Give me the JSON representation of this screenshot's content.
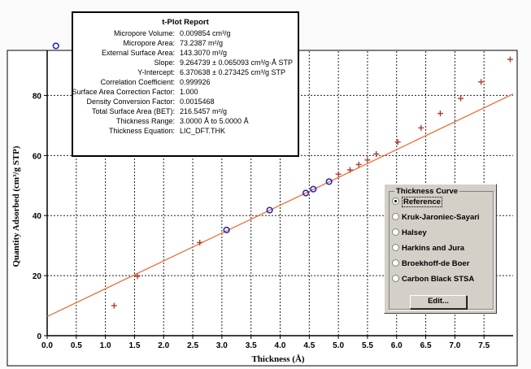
{
  "chart_data": {
    "type": "scatter",
    "title": "",
    "xlabel": "Thickness (Å)",
    "ylabel": "Quantity Adsorbed (cm³/g STP)",
    "xlim": [
      0,
      8.0
    ],
    "ylim": [
      0,
      95
    ],
    "x_ticks": [
      0.0,
      0.5,
      1.0,
      1.5,
      2.0,
      2.5,
      3.0,
      3.5,
      4.0,
      4.5,
      5.0,
      5.5,
      6.0,
      6.5,
      7.0,
      7.5
    ],
    "x_tick_labels": [
      "0.0",
      "0.5",
      "1.0",
      "1.5",
      "2.0",
      "2.5",
      "3.0",
      "3.5",
      "4.0",
      "4.5",
      "5.0",
      "5.5",
      "6.0",
      "6.5",
      "7.0",
      "7.5"
    ],
    "y_ticks": [
      0,
      20,
      40,
      60,
      80
    ],
    "y_tick_labels": [
      "0",
      "20",
      "40",
      "60",
      "80"
    ],
    "grid": true,
    "series": [
      {
        "marker": "circle",
        "color": "#2b2bb0",
        "x": [
          0.15,
          3.08,
          3.82,
          4.44,
          4.57,
          4.84
        ],
        "y": [
          96.5,
          35.2,
          41.8,
          47.5,
          48.8,
          51.3
        ]
      },
      {
        "marker": "plus",
        "color": "#b03a2e",
        "x": [
          1.15,
          1.55,
          2.62,
          5.0,
          5.2,
          5.35,
          5.5,
          5.65,
          6.02,
          6.42,
          6.75,
          7.1,
          7.45,
          7.95
        ],
        "y": [
          10.0,
          19.8,
          31.0,
          53.8,
          55.2,
          57.0,
          58.5,
          60.5,
          64.5,
          69.2,
          74.0,
          79.0,
          84.5,
          92.0
        ]
      },
      {
        "marker": "line",
        "color": "#e8703a",
        "x": [
          0.0,
          8.0
        ],
        "y": [
          6.37,
          80.49
        ]
      }
    ]
  },
  "report": {
    "title": "t-Plot Report",
    "rows": [
      {
        "label": "Micropore Volume:",
        "value": "0.009854 cm³/g"
      },
      {
        "label": "Micropore Area:",
        "value": "73.2387 m²/g"
      },
      {
        "label": "External Surface Area:",
        "value": "143.3070 m²/g"
      },
      {
        "label": "Slope:",
        "value": "9.264739 ± 0.065093 cm³/g·Å STP"
      },
      {
        "label": "Y-Intercept:",
        "value": "6.370638 ± 0.273425 cm³/g STP"
      },
      {
        "label": "Correlation Coefficient:",
        "value": "0.999926"
      },
      {
        "label": "Surface Area Correction Factor:",
        "value": "1.000"
      },
      {
        "label": "Density Conversion Factor:",
        "value": "0.0015468"
      },
      {
        "label": "Total Surface Area (BET):",
        "value": "216.5457 m²/g"
      },
      {
        "label": "Thickness Range:",
        "value": "3.0000 Å to 5.0000 Å"
      },
      {
        "label": "Thickness Equation:",
        "value": "LIC_DFT.THK"
      }
    ]
  },
  "thickness_curve": {
    "title": "Thickness Curve",
    "options": [
      {
        "label": "Reference",
        "checked": true
      },
      {
        "label": "Kruk-Jaroniec-Sayari",
        "checked": false
      },
      {
        "label": "Halsey",
        "checked": false
      },
      {
        "label": "Harkins and Jura",
        "checked": false
      },
      {
        "label": "Broekhoff-de Boer",
        "checked": false
      },
      {
        "label": "Carbon Black STSA",
        "checked": false
      }
    ],
    "edit_label": "Edit..."
  }
}
